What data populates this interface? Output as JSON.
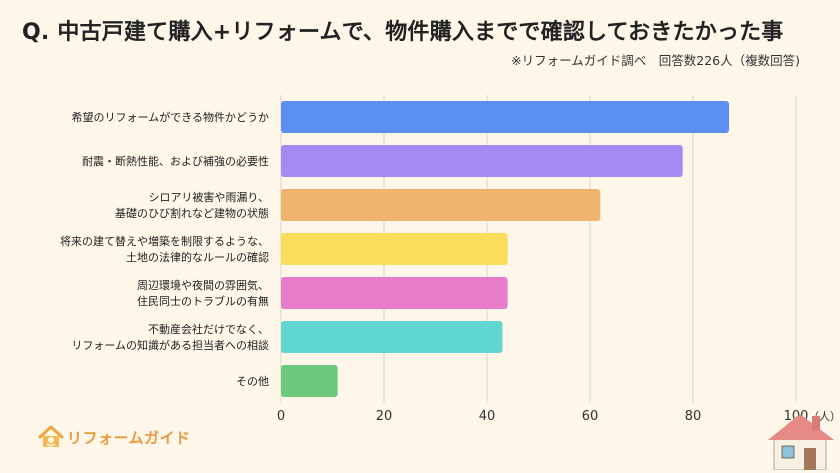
{
  "header": {
    "title": "Q. 中古戸建て購入+リフォームで、物件購入までで確認しておきたかった事",
    "subtitle": "※リフォームガイド調べ　回答数226人（複数回答)"
  },
  "logo": {
    "text": "リフォームガイド"
  },
  "chart_data": {
    "type": "bar",
    "orientation": "horizontal",
    "categories": [
      [
        "希望のリフォームができる物件かどうか"
      ],
      [
        "耐震・断熱性能、および補強の必要性"
      ],
      [
        "シロアリ被害や雨漏り、",
        "基礎のひび割れなど建物の状態"
      ],
      [
        "将来の建て替えや増築を制限するような、",
        "土地の法律的なルールの確認"
      ],
      [
        "周辺環境や夜間の雰囲気、",
        "住民同士のトラブルの有無"
      ],
      [
        "不動産会社だけでなく、",
        "リフォームの知識がある担当者への相談"
      ],
      [
        "その他"
      ]
    ],
    "values": [
      87,
      78,
      62,
      44,
      44,
      43,
      11
    ],
    "colors": [
      "#5b8ff2",
      "#a48af2",
      "#efb46e",
      "#fbdc5c",
      "#e77ccb",
      "#5fd6d0",
      "#6cc87c"
    ],
    "x_ticks": [
      "0",
      "20",
      "40",
      "60",
      "80",
      "100"
    ],
    "x_unit": "（人）",
    "xlim": [
      0,
      100
    ],
    "grid": true
  }
}
